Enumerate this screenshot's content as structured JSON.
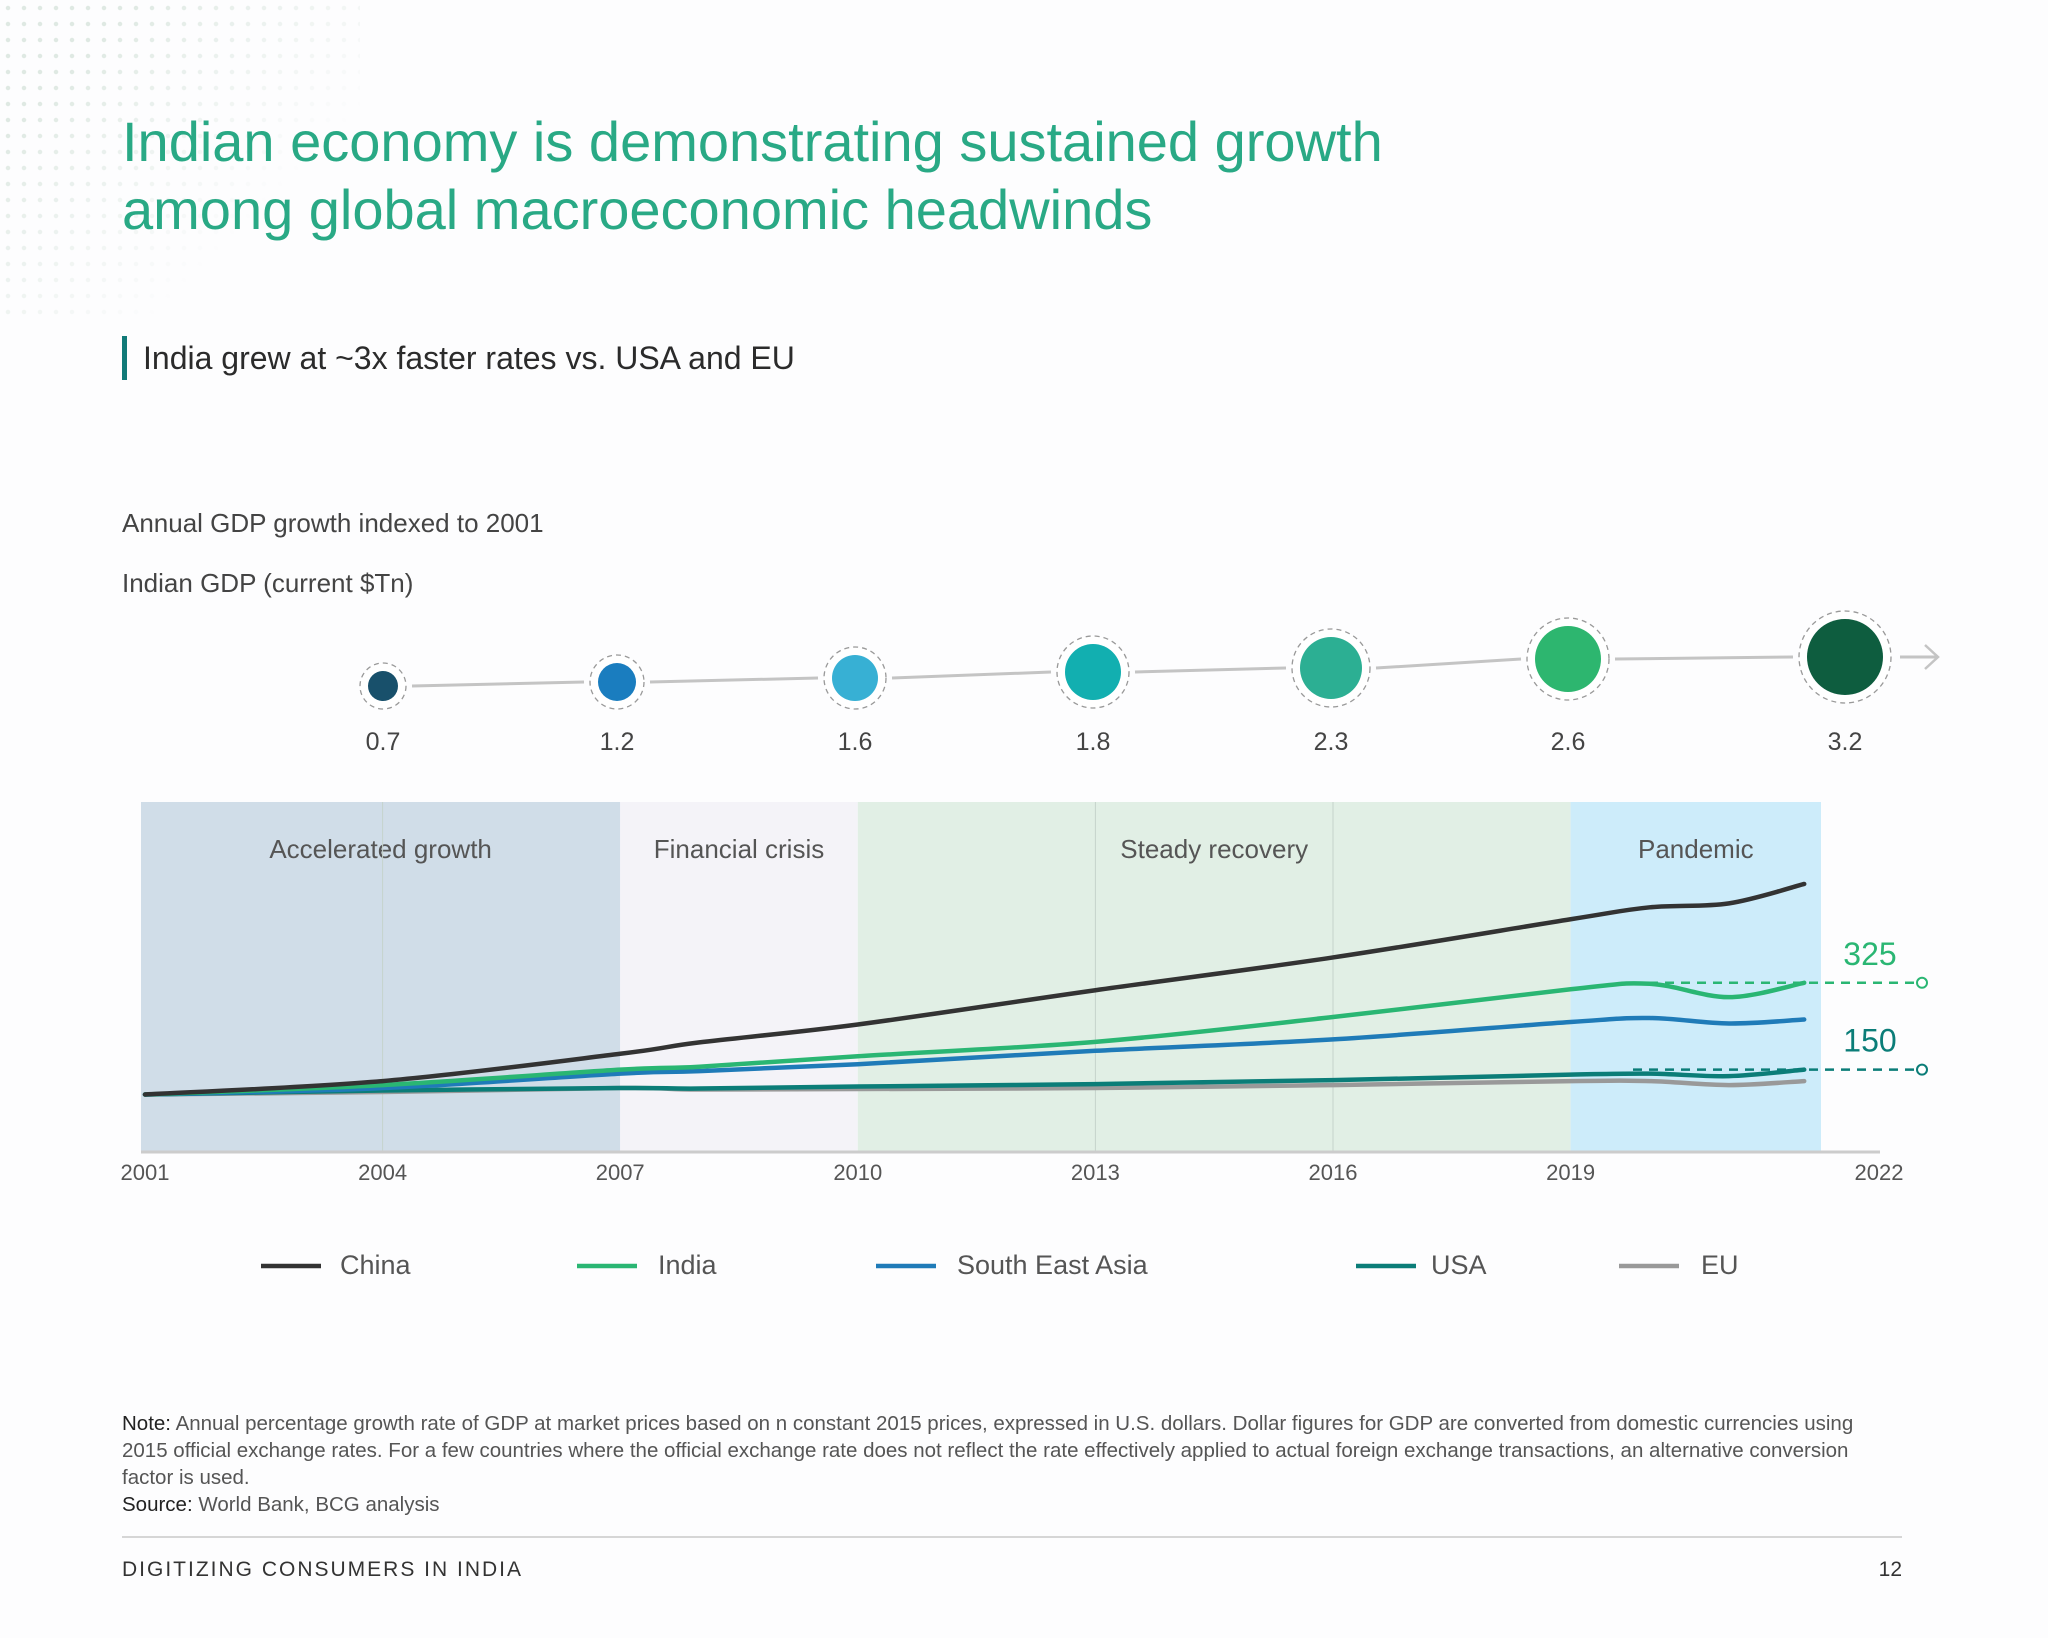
{
  "title_lines": [
    "Indian economy is demonstrating sustained growth",
    "among global macroeconomic headwinds"
  ],
  "subtitle": "India grew at ~3x faster rates vs. USA and EU",
  "chart_data": {
    "type": "line",
    "title": "Annual GDP growth indexed to 2001",
    "x_ticks": [
      "2001",
      "2004",
      "2007",
      "2010",
      "2013",
      "2016",
      "2019",
      "2022"
    ],
    "xlim": [
      2001,
      2022
    ],
    "grid": false,
    "periods": [
      {
        "label": "Accelerated growth",
        "from": 2001,
        "to": 2007,
        "color": "#d0dde8"
      },
      {
        "label": "Financial crisis",
        "from": 2007,
        "to": 2010,
        "color": "#f4f3f8"
      },
      {
        "label": "Steady recovery",
        "from": 2010,
        "to": 2019,
        "color": "#e1efe5"
      },
      {
        "label": "Pandemic",
        "from": 2019,
        "to": 2022,
        "color": "#cdecfa"
      }
    ],
    "x": [
      2001,
      2004,
      2007,
      2008,
      2010,
      2013,
      2016,
      2019,
      2020,
      2021,
      2022
    ],
    "series": [
      {
        "name": "China",
        "color": "#333333",
        "values": [
          100,
          127,
          182,
          205,
          241,
          310,
          376,
          453,
          477,
          485,
          524
        ]
      },
      {
        "name": "India",
        "color": "#2ab673",
        "values": [
          100,
          119,
          150,
          156,
          177,
          206,
          256,
          312,
          323,
          296,
          325
        ]
      },
      {
        "name": "South East Asia",
        "color": "#1f7bb8",
        "values": [
          100,
          113,
          142,
          147,
          161,
          188,
          211,
          246,
          254,
          243,
          251
        ]
      },
      {
        "name": "USA",
        "color": "#0b7d78",
        "values": [
          100,
          108,
          113,
          112,
          116,
          121,
          129,
          140,
          142,
          137,
          150
        ]
      },
      {
        "name": "EU",
        "color": "#999999",
        "values": [
          100,
          105,
          113,
          110,
          111,
          113,
          119,
          127,
          127,
          119,
          127
        ]
      }
    ],
    "end_labels": [
      {
        "text": "325",
        "value": 325,
        "color": "#2ab673"
      },
      {
        "text": "150",
        "value": 150,
        "color": "#0b7d78"
      }
    ],
    "legend_position": "bottom",
    "gdp_track": {
      "label": "Indian GDP (current $Tn)",
      "points": [
        {
          "year": 2004,
          "value": "0.7",
          "color": "#18506b"
        },
        {
          "year": 2007,
          "value": "1.2",
          "color": "#1a7dbf"
        },
        {
          "year": 2010,
          "value": "1.6",
          "color": "#37b0d4"
        },
        {
          "year": 2013,
          "value": "1.8",
          "color": "#12afb0"
        },
        {
          "year": 2016,
          "value": "2.3",
          "color": "#2caf93"
        },
        {
          "year": 2019,
          "value": "2.6",
          "color": "#2db66f"
        },
        {
          "year": 2022,
          "value": "3.2",
          "color": "#0e5d3f"
        }
      ]
    }
  },
  "note_label": "Note:",
  "note_text": " Annual percentage growth rate of GDP at market prices based on n constant 2015 prices, expressed in U.S. dollars. Dollar figures for GDP are converted from domestic currencies using 2015 official exchange rates. For a few countries where the official exchange rate does not reflect the rate effectively applied to actual foreign exchange transactions, an alternative conversion factor is used.",
  "source_label": "Source:",
  "source_text": " World Bank, BCG analysis",
  "footer": "DIGITIZING CONSUMERS IN INDIA",
  "page_number": "12"
}
